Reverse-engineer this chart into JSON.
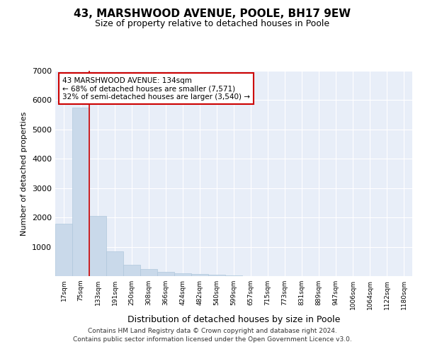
{
  "title1": "43, MARSHWOOD AVENUE, POOLE, BH17 9EW",
  "title2": "Size of property relative to detached houses in Poole",
  "xlabel": "Distribution of detached houses by size in Poole",
  "ylabel": "Number of detached properties",
  "categories": [
    "17sqm",
    "75sqm",
    "133sqm",
    "191sqm",
    "250sqm",
    "308sqm",
    "366sqm",
    "424sqm",
    "482sqm",
    "540sqm",
    "599sqm",
    "657sqm",
    "715sqm",
    "773sqm",
    "831sqm",
    "889sqm",
    "947sqm",
    "1006sqm",
    "1064sqm",
    "1122sqm",
    "1180sqm"
  ],
  "values": [
    1780,
    5750,
    2060,
    840,
    380,
    235,
    145,
    100,
    70,
    45,
    15,
    8,
    3,
    0,
    0,
    0,
    0,
    0,
    0,
    0,
    0
  ],
  "bar_color": "#c9d9ea",
  "bar_edge_color": "#b0c8dc",
  "red_line_x": 1.5,
  "annotation_line1": "43 MARSHWOOD AVENUE: 134sqm",
  "annotation_line2": "← 68% of detached houses are smaller (7,571)",
  "annotation_line3": "32% of semi-detached houses are larger (3,540) →",
  "annotation_box_color": "#ffffff",
  "annotation_box_edge": "#cc0000",
  "ylim": [
    0,
    7000
  ],
  "yticks": [
    0,
    1000,
    2000,
    3000,
    4000,
    5000,
    6000,
    7000
  ],
  "footer1": "Contains HM Land Registry data © Crown copyright and database right 2024.",
  "footer2": "Contains public sector information licensed under the Open Government Licence v3.0.",
  "bg_color": "#ffffff",
  "plot_bg_color": "#e8eef8",
  "grid_color": "#ffffff",
  "title1_fontsize": 11,
  "title2_fontsize": 9,
  "ylabel_fontsize": 8,
  "xlabel_fontsize": 9
}
